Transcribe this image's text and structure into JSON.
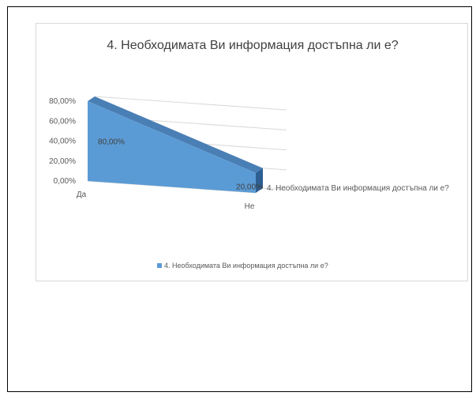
{
  "chart_data": {
    "type": "area",
    "style": "3d-area",
    "title": "4. Необходимата Ви информация достъпна ли е?",
    "categories": [
      "Да",
      "Не"
    ],
    "series": [
      {
        "name": "4. Необходимата Ви информация достъпна ли е?",
        "values": [
          80,
          20
        ],
        "data_labels": [
          "80,00%",
          "20,00%"
        ],
        "color": "#5b9bd5"
      }
    ],
    "y_ticks": [
      "0,00%",
      "20,00%",
      "40,00%",
      "60,00%",
      "80,00%"
    ],
    "ylim": [
      0,
      80
    ],
    "grid": true,
    "legend_position": "bottom"
  },
  "colors": {
    "front": "#5b9bd5",
    "top": "#4a7fb5",
    "side": "#2e5f92",
    "gridline": "#d9d9d9"
  }
}
